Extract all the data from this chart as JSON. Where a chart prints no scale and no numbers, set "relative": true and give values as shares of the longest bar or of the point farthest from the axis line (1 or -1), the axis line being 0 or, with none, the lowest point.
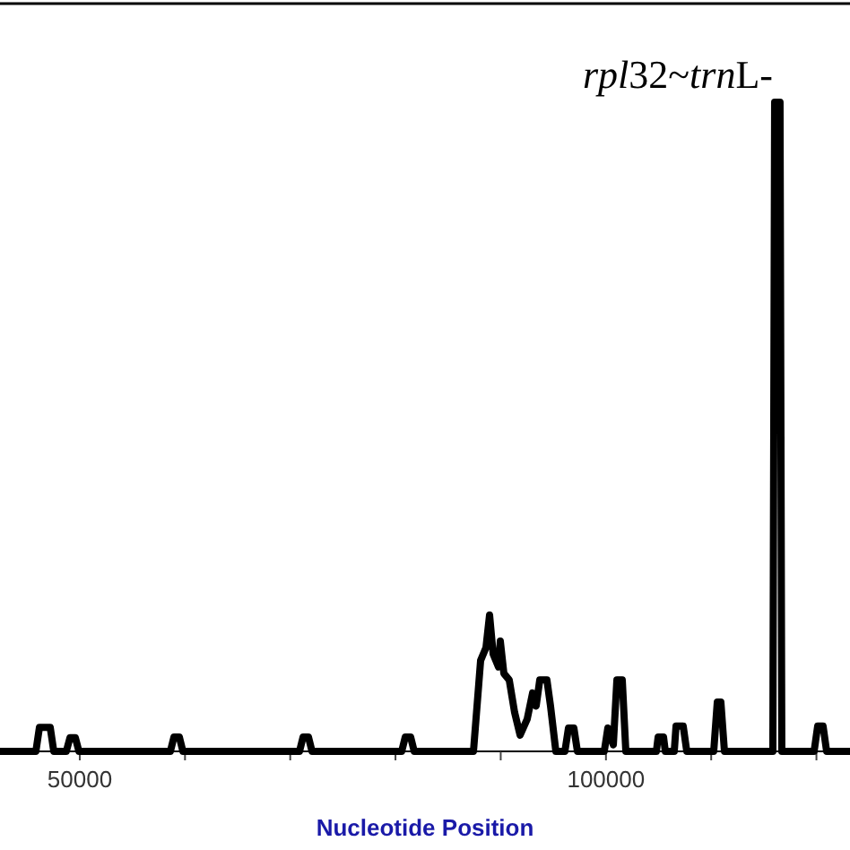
{
  "chart_data": {
    "type": "line",
    "relative": true,
    "xlabel": "Nucleotide Position",
    "color": "#000000",
    "xlim": [
      42420,
      123190
    ],
    "xticks": [
      50000,
      {
        "value": 60000,
        "label": null
      },
      {
        "value": 70000,
        "label": null
      },
      {
        "value": 80000,
        "label": null
      },
      {
        "value": 90000,
        "label": null
      },
      100000,
      {
        "value": 110000,
        "label": null
      },
      {
        "value": 120000,
        "label": null
      }
    ],
    "annotations": [
      "rpl32~trnL-"
    ],
    "x": [
      42420,
      45830,
      46170,
      47190,
      47530,
      48720,
      49070,
      49580,
      49920,
      58610,
      58950,
      59460,
      59800,
      70880,
      71220,
      71730,
      72070,
      80590,
      80930,
      81440,
      81780,
      87410,
      88090,
      88600,
      88940,
      89280,
      89790,
      89960,
      90300,
      90810,
      91320,
      91840,
      92520,
      93030,
      93370,
      93710,
      94390,
      94730,
      95240,
      96100,
      96440,
      96950,
      97290,
      99840,
      100180,
      100700,
      101040,
      101550,
      101890,
      104790,
      104960,
      105470,
      105640,
      106490,
      106660,
      107340,
      107680,
      110240,
      110580,
      110920,
      111260,
      115860,
      116030,
      116540,
      116710,
      119780,
      120120,
      120630,
      120970,
      123190
    ],
    "values": [
      0,
      0,
      0.037,
      0.037,
      0,
      0,
      0.021,
      0.021,
      0,
      0,
      0.022,
      0.022,
      0,
      0,
      0.022,
      0.022,
      0,
      0,
      0.022,
      0.022,
      0,
      0,
      0.14,
      0.16,
      0.21,
      0.15,
      0.13,
      0.17,
      0.12,
      0.11,
      0.06,
      0.025,
      0.05,
      0.09,
      0.07,
      0.11,
      0.11,
      0.07,
      0,
      0,
      0.036,
      0.036,
      0,
      0,
      0.036,
      0.01,
      0.11,
      0.11,
      0,
      0,
      0.022,
      0.022,
      0,
      0,
      0.039,
      0.039,
      0,
      0,
      0.076,
      0.076,
      0,
      0,
      1,
      1,
      0,
      0,
      0.039,
      0.039,
      0,
      0
    ]
  }
}
